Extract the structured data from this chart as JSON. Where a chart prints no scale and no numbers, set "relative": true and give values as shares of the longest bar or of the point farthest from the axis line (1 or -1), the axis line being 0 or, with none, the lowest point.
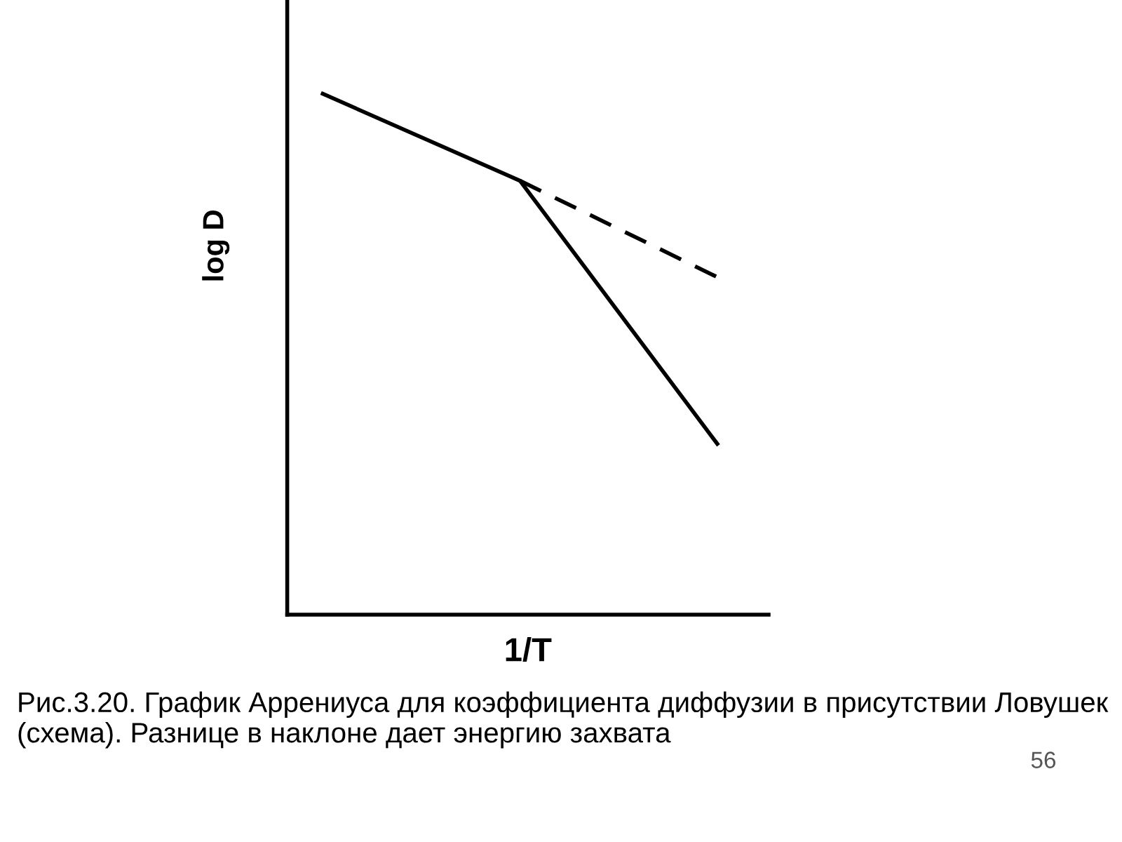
{
  "chart_data": {
    "type": "line",
    "relative": true,
    "xlabel": "1/T",
    "ylabel": "log D",
    "categories": [
      null,
      null,
      null
    ],
    "series": [
      {
        "color": "#000000",
        "values": [
          1,
          0.833,
          0.328
        ],
        "line_style": "solid"
      },
      {
        "color": "#000000",
        "values": [
          null,
          0.833,
          0.648
        ],
        "line_style": "dashed"
      }
    ],
    "marker": "none",
    "annotations": [
      "Рис.3.20. График Аррениуса для коэффициента диффузии в присутствии Ловушек  (схема). Разнице в наклоне дает энергию захвата",
      "56"
    ]
  }
}
